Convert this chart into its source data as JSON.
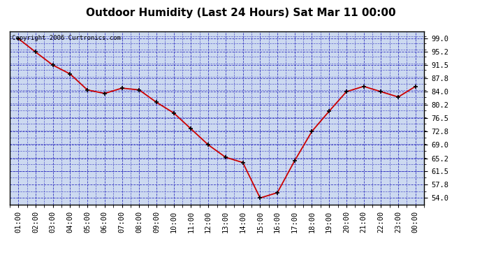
{
  "title": "Outdoor Humidity (Last 24 Hours) Sat Mar 11 00:00",
  "copyright": "Copyright 2006 Curtronics.com",
  "x_labels": [
    "01:00",
    "02:00",
    "03:00",
    "04:00",
    "05:00",
    "06:00",
    "07:00",
    "08:00",
    "09:00",
    "10:00",
    "11:00",
    "12:00",
    "13:00",
    "14:00",
    "15:00",
    "16:00",
    "17:00",
    "18:00",
    "19:00",
    "20:00",
    "21:00",
    "22:00",
    "23:00",
    "00:00"
  ],
  "y_values": [
    99.0,
    95.2,
    91.5,
    89.0,
    84.5,
    83.5,
    85.0,
    84.5,
    81.0,
    78.0,
    73.5,
    69.0,
    65.5,
    64.0,
    54.0,
    55.5,
    64.5,
    72.8,
    78.5,
    84.0,
    85.5,
    84.0,
    82.5,
    85.5
  ],
  "line_color": "#cc0000",
  "marker_color": "#000000",
  "fig_bg_color": "#ffffff",
  "plot_bg_color": "#ccd9f0",
  "grid_color": "#2222bb",
  "title_color": "#000000",
  "border_color": "#000000",
  "ylim": [
    52.2,
    101.0
  ],
  "yticks": [
    54.0,
    57.8,
    61.5,
    65.2,
    69.0,
    72.8,
    76.5,
    80.2,
    84.0,
    87.8,
    91.5,
    95.2,
    99.0
  ],
  "title_fontsize": 11,
  "tick_fontsize": 7.5,
  "copyright_fontsize": 6.5
}
